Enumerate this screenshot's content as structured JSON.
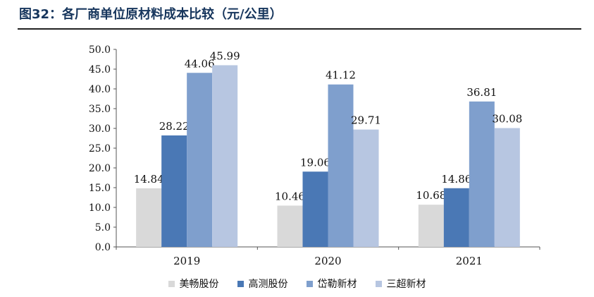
{
  "figure": {
    "title": "图32：各厂商单位原材料成本比较（元/公里）"
  },
  "chart_data": {
    "type": "bar",
    "categories": [
      "2019",
      "2020",
      "2021"
    ],
    "series": [
      {
        "name": "美畅股份",
        "color": "#d9d9d9",
        "values": [
          14.84,
          10.46,
          10.68
        ]
      },
      {
        "name": "高测股份",
        "color": "#4a78b5",
        "values": [
          28.22,
          19.06,
          14.86
        ]
      },
      {
        "name": "岱勒新材",
        "color": "#7f9fcd",
        "values": [
          44.06,
          41.12,
          36.81
        ]
      },
      {
        "name": "三超新材",
        "color": "#b7c6e1",
        "values": [
          45.99,
          29.71,
          30.08
        ]
      }
    ],
    "data_labels": [
      [
        "14.84",
        "10.46",
        "10.68"
      ],
      [
        "28.22",
        "19.06",
        "14.86"
      ],
      [
        "44.06",
        "41.12",
        "36.81"
      ],
      [
        "45.99",
        "29.71",
        "30.08"
      ]
    ],
    "yticks": [
      "0.0",
      "5.0",
      "10.0",
      "15.0",
      "20.0",
      "25.0",
      "30.0",
      "35.0",
      "40.0",
      "45.0",
      "50.0"
    ],
    "ylim": [
      0,
      50
    ],
    "grid": false,
    "legend_position": "bottom"
  }
}
